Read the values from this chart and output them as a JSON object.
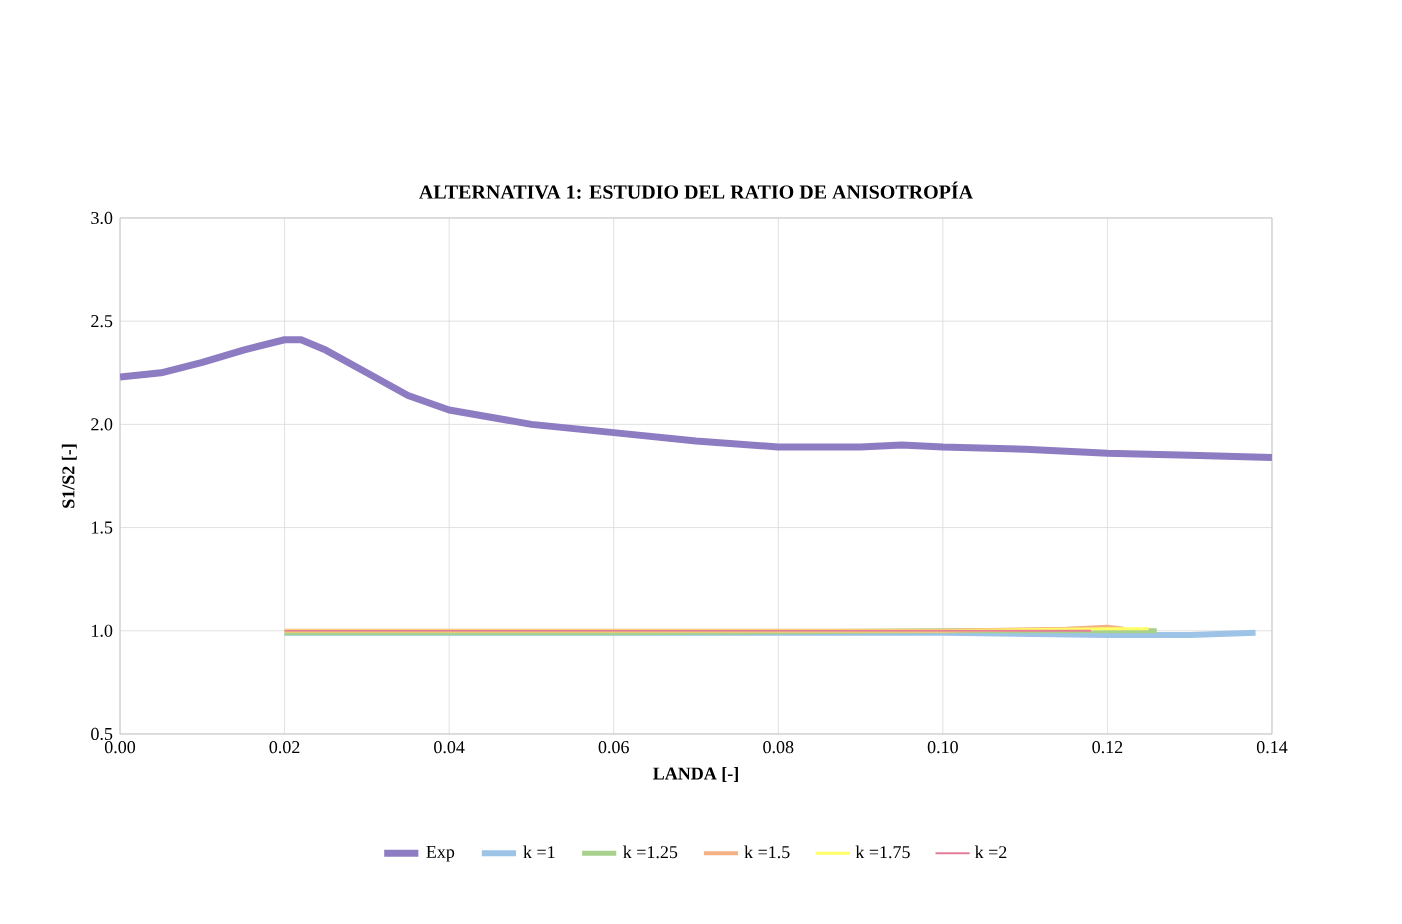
{
  "chart_data": {
    "type": "line",
    "title": "ALTERNATIVA 1: ESTUDIO DEL RATIO DE ANISOTROPÍA",
    "xlabel": "LANDA [-]",
    "ylabel": "S1/S2 [-]",
    "xlim": [
      0,
      0.14
    ],
    "ylim": [
      0.5,
      3.0
    ],
    "xticks": [
      {
        "value": 0,
        "label": "0.00"
      },
      0.02,
      0.04,
      0.06,
      0.08,
      {
        "value": 0.1,
        "label": "0.10"
      },
      0.12,
      0.14
    ],
    "yticks": [
      0.5,
      {
        "value": 1,
        "label": "1.0"
      },
      1.5,
      {
        "value": 2,
        "label": "2.0"
      },
      2.5,
      {
        "value": 3,
        "label": "3.0"
      }
    ],
    "grid": true,
    "legend": "bottom",
    "marker": "none",
    "line_style": "solid",
    "series": [
      {
        "name": "Exp",
        "color": "#8e7cc3",
        "x": [
          0,
          0.005,
          0.01,
          0.015,
          0.02,
          0.022,
          0.025,
          0.03,
          0.035,
          0.04,
          0.05,
          0.06,
          0.07,
          0.08,
          0.09,
          0.095,
          0.1,
          0.11,
          0.12,
          0.13,
          0.14
        ],
        "values": [
          2.23,
          2.25,
          2.3,
          2.36,
          2.41,
          2.41,
          2.36,
          2.25,
          2.14,
          2.07,
          2.0,
          1.96,
          1.92,
          1.89,
          1.89,
          1.9,
          1.89,
          1.88,
          1.86,
          1.85,
          1.84
        ]
      },
      {
        "name": "k =1",
        "color": "#9dc3e6",
        "x": [
          0.02,
          0.06,
          0.1,
          0.12,
          0.13,
          0.138
        ],
        "values": [
          0.99,
          0.99,
          0.99,
          0.98,
          0.98,
          0.99
        ]
      },
      {
        "name": "k =1.25",
        "color": "#a9d18e",
        "x": [
          0.02,
          0.06,
          0.1,
          0.12,
          0.126
        ],
        "values": [
          0.99,
          0.99,
          1.0,
          1.0,
          1.0
        ]
      },
      {
        "name": "k =1.5",
        "color": "#f4b183",
        "x": [
          0.02,
          0.06,
          0.1,
          0.115,
          0.12,
          0.122
        ],
        "values": [
          1.0,
          1.0,
          1.0,
          1.01,
          1.02,
          1.01
        ]
      },
      {
        "name": "k =1.75",
        "color": "#ffff66",
        "x": [
          0.02,
          0.06,
          0.1,
          0.12,
          0.125
        ],
        "values": [
          1.0,
          1.0,
          1.0,
          1.01,
          1.01
        ]
      },
      {
        "name": "k =2",
        "color": "#e57c98",
        "x": [
          0.02,
          0.06,
          0.1,
          0.118
        ],
        "values": [
          1.0,
          1.0,
          1.0,
          1.0
        ]
      }
    ]
  }
}
